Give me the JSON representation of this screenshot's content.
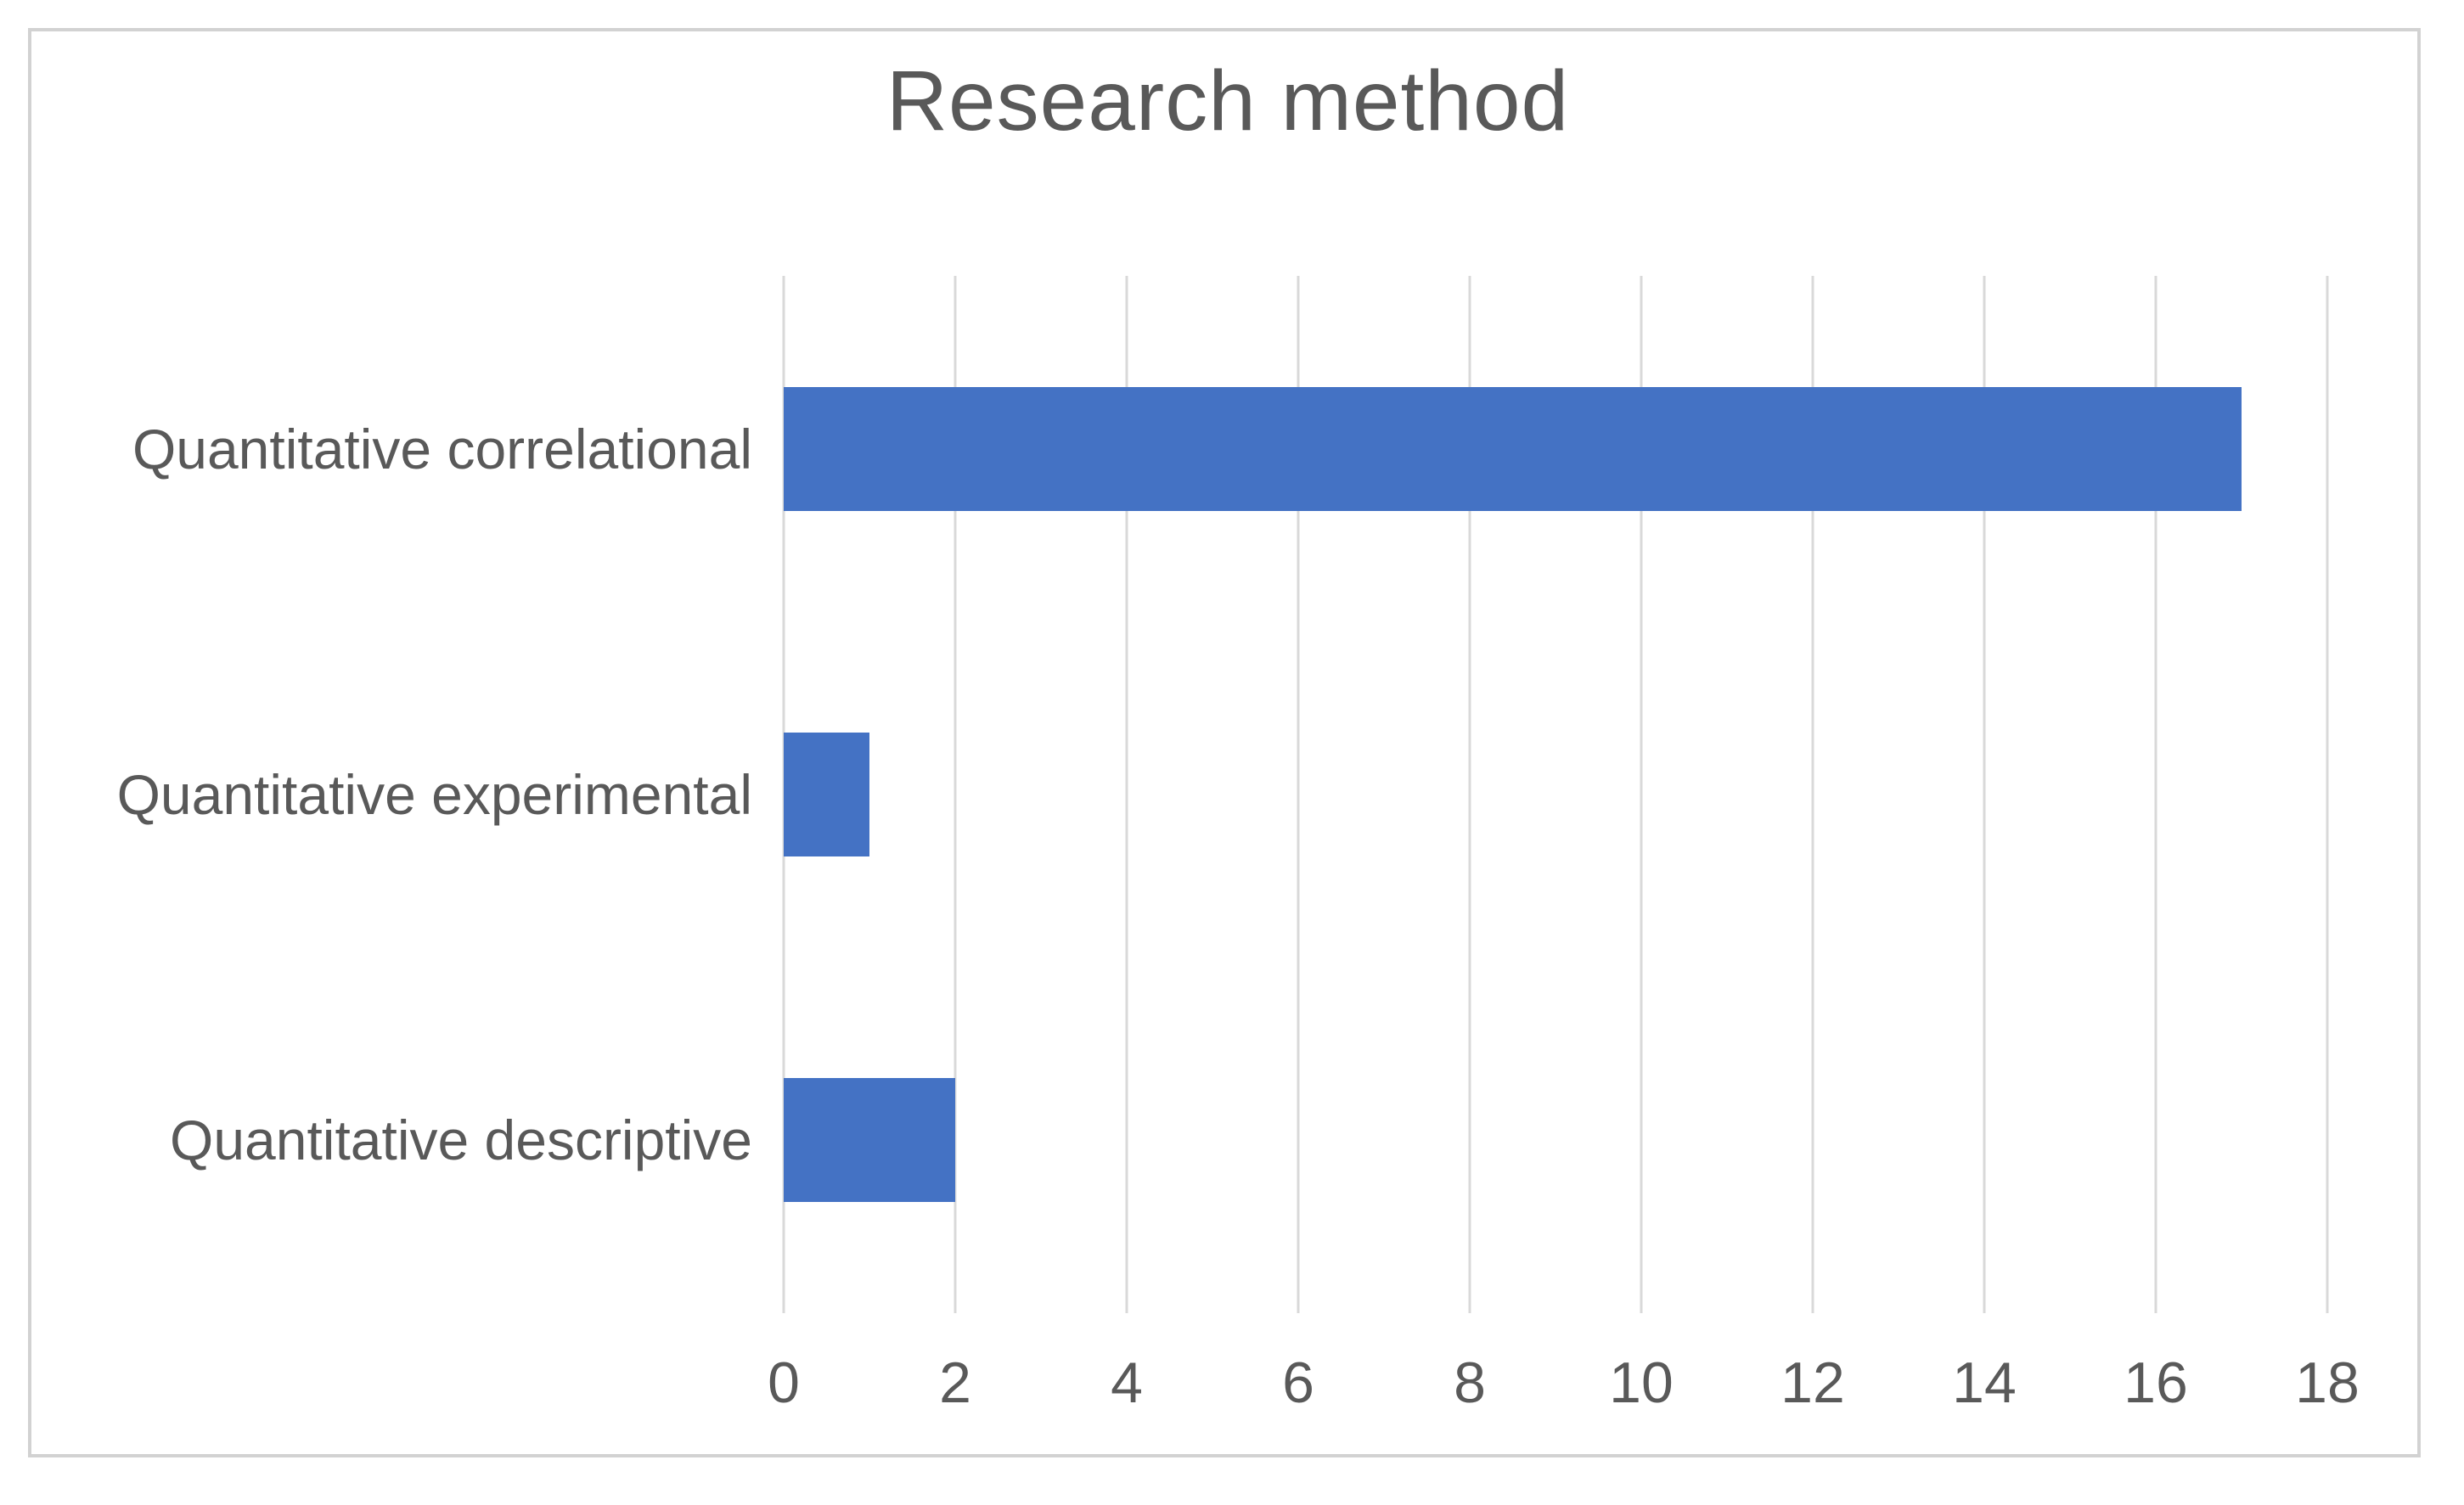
{
  "chart_data": {
    "type": "bar",
    "orientation": "horizontal",
    "title": "Research method",
    "categories": [
      "Quantitative correlational",
      "Quantitative experimental",
      "Quantitative descriptive"
    ],
    "values": [
      17,
      1,
      2
    ],
    "xlim": [
      0,
      18
    ],
    "x_ticks": [
      0,
      2,
      4,
      6,
      8,
      10,
      12,
      14,
      16,
      18
    ],
    "xlabel": "",
    "ylabel": "",
    "grid": "vertical-only",
    "legend": "none",
    "colors": {
      "bar": "#4472c4",
      "gridline": "#d9d9d9",
      "text": "#595959",
      "frame_border": "#d2d2d2",
      "background": "#ffffff"
    }
  }
}
